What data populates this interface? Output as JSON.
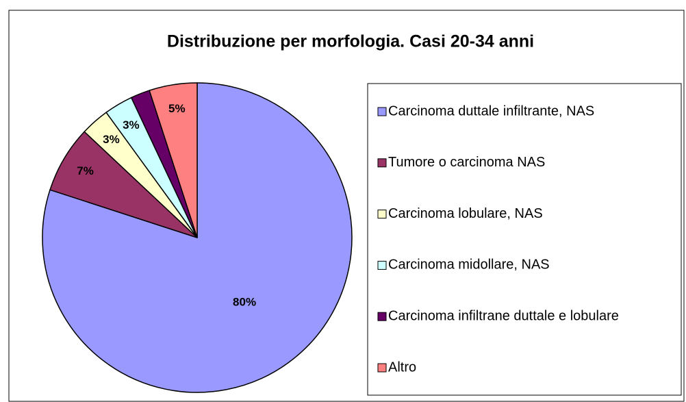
{
  "chart_data": {
    "type": "pie",
    "title": "Distribuzione per morfologia. Casi 20-34 anni",
    "categories": [
      "Carcinoma duttale infiltrante, NAS",
      "Tumore o carcinoma NAS",
      "Carcinoma lobulare, NAS",
      "Carcinoma midollare, NAS",
      "Carcinoma infiltrane duttale e lobulare",
      "Altro"
    ],
    "values": [
      80,
      7,
      3,
      3,
      2,
      5
    ],
    "value_labels": [
      "80%",
      "7%",
      "3%",
      "3%",
      null,
      "5%"
    ],
    "colors": [
      "#9999ff",
      "#993366",
      "#ffffcc",
      "#ccffff",
      "#660066",
      "#ff8080"
    ],
    "legend": "right"
  }
}
